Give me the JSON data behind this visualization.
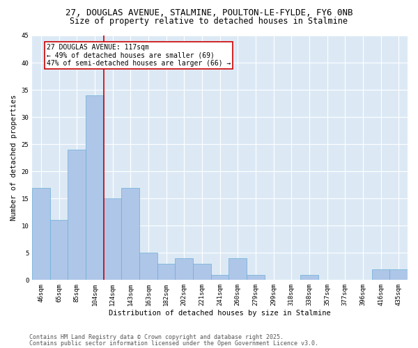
{
  "title1": "27, DOUGLAS AVENUE, STALMINE, POULTON-LE-FYLDE, FY6 0NB",
  "title2": "Size of property relative to detached houses in Stalmine",
  "xlabel": "Distribution of detached houses by size in Stalmine",
  "ylabel": "Number of detached properties",
  "categories": [
    "46sqm",
    "65sqm",
    "85sqm",
    "104sqm",
    "124sqm",
    "143sqm",
    "163sqm",
    "182sqm",
    "202sqm",
    "221sqm",
    "241sqm",
    "260sqm",
    "279sqm",
    "299sqm",
    "318sqm",
    "338sqm",
    "357sqm",
    "377sqm",
    "396sqm",
    "416sqm",
    "435sqm"
  ],
  "values": [
    17,
    11,
    24,
    34,
    15,
    17,
    5,
    3,
    4,
    3,
    1,
    4,
    1,
    0,
    0,
    1,
    0,
    0,
    0,
    2,
    2
  ],
  "bar_color": "#aec6e8",
  "bar_edge_color": "#6aaed6",
  "background_color": "#dce9f5",
  "vline_color": "#cc0000",
  "annotation_text": "27 DOUGLAS AVENUE: 117sqm\n← 49% of detached houses are smaller (69)\n47% of semi-detached houses are larger (66) →",
  "annotation_box_color": "white",
  "annotation_box_edge": "#cc0000",
  "ylim": [
    0,
    45
  ],
  "yticks": [
    0,
    5,
    10,
    15,
    20,
    25,
    30,
    35,
    40,
    45
  ],
  "footnote1": "Contains HM Land Registry data © Crown copyright and database right 2025.",
  "footnote2": "Contains public sector information licensed under the Open Government Licence v3.0.",
  "title_fontsize": 9,
  "subtitle_fontsize": 8.5,
  "axis_label_fontsize": 7.5,
  "tick_fontsize": 6.5,
  "annotation_fontsize": 7,
  "footnote_fontsize": 6
}
